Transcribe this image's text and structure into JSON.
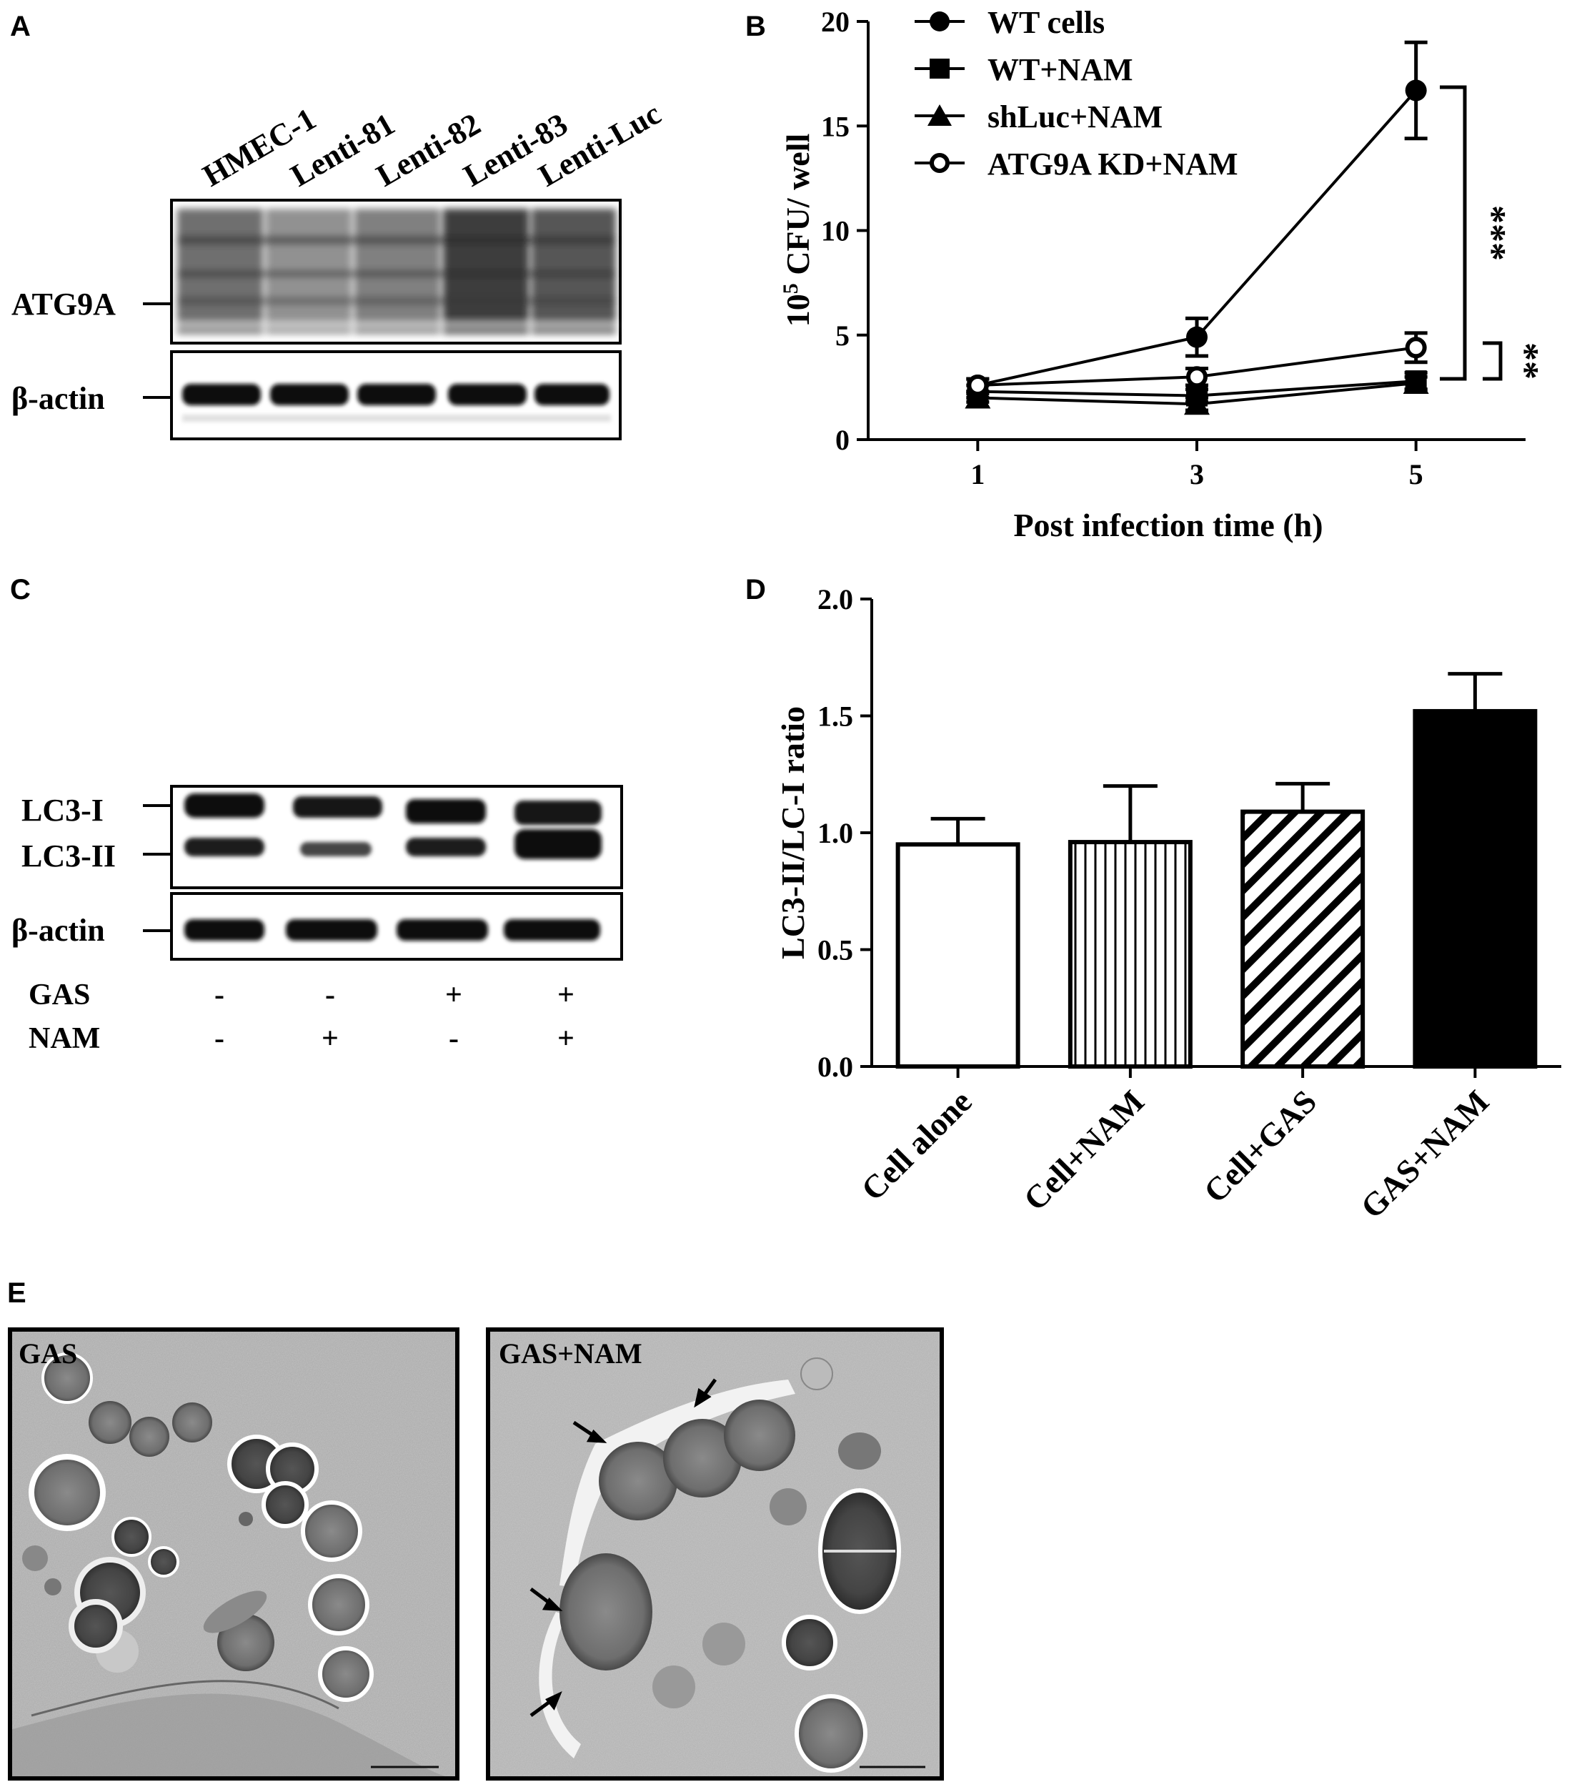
{
  "panels": {
    "A": {
      "letter": "A",
      "lanes": [
        "HMEC-1",
        "Lenti-81",
        "Lenti-82",
        "Lenti-83",
        "Lenti-Luc"
      ],
      "bands": [
        "ATG9A",
        "β-actin"
      ]
    },
    "B": {
      "letter": "B"
    },
    "C": {
      "letter": "C",
      "bands": [
        "LC3-I",
        "LC3-II",
        "β-actin"
      ],
      "conditions": [
        {
          "label": "GAS",
          "values": [
            "-",
            "-",
            "+",
            "+"
          ]
        },
        {
          "label": "NAM",
          "values": [
            "-",
            "+",
            "-",
            "+"
          ]
        }
      ]
    },
    "D": {
      "letter": "D"
    },
    "E": {
      "letter": "E",
      "images": [
        {
          "label": "GAS"
        },
        {
          "label": "GAS+NAM"
        }
      ]
    }
  },
  "chart_data": [
    {
      "panel": "B",
      "type": "line",
      "title": "",
      "xlabel": "Post infection time (h)",
      "ylabel_prefix": "10",
      "ylabel_sup": "5",
      "ylabel_rest": " CFU/ well",
      "x": [
        1,
        3,
        5
      ],
      "xticks": [
        "1",
        "3",
        "5"
      ],
      "xlim": [
        0,
        6
      ],
      "ylim": [
        0,
        20
      ],
      "yticks": [
        "0",
        "5",
        "10",
        "15",
        "20"
      ],
      "grid": false,
      "legend_position": "top-left",
      "series": [
        {
          "name": "WT cells",
          "marker": "circle-filled",
          "values": [
            2.6,
            4.9,
            16.7
          ],
          "errors": [
            0.3,
            0.9,
            2.3
          ]
        },
        {
          "name": "WT+NAM",
          "marker": "square-filled",
          "values": [
            2.3,
            2.1,
            2.8
          ],
          "errors": [
            0.3,
            0.3,
            0.4
          ]
        },
        {
          "name": "shLuc+NAM",
          "marker": "triangle-filled",
          "values": [
            2.0,
            1.7,
            2.7
          ],
          "errors": [
            0.2,
            0.3,
            0.3
          ]
        },
        {
          "name": "ATG9A KD+NAM",
          "marker": "circle-open",
          "values": [
            2.6,
            3.0,
            4.4
          ],
          "errors": [
            0.3,
            0.4,
            0.7
          ]
        }
      ],
      "annotations": [
        "***",
        "**"
      ]
    },
    {
      "panel": "D",
      "type": "bar",
      "title": "",
      "xlabel": "",
      "ylabel": "LC3-II/LC-I ratio",
      "categories": [
        "Cell alone",
        "Cell+NAM",
        "Cell+GAS",
        "GAS+NAM"
      ],
      "values": [
        0.95,
        0.96,
        1.09,
        1.52
      ],
      "errors": [
        0.11,
        0.24,
        0.12,
        0.16
      ],
      "patterns": [
        "white",
        "vertical-lines",
        "diagonal-lines",
        "black"
      ],
      "ylim": [
        0,
        2.0
      ],
      "yticks": [
        "0.0",
        "0.5",
        "1.0",
        "1.5",
        "2.0"
      ],
      "grid": false
    }
  ]
}
